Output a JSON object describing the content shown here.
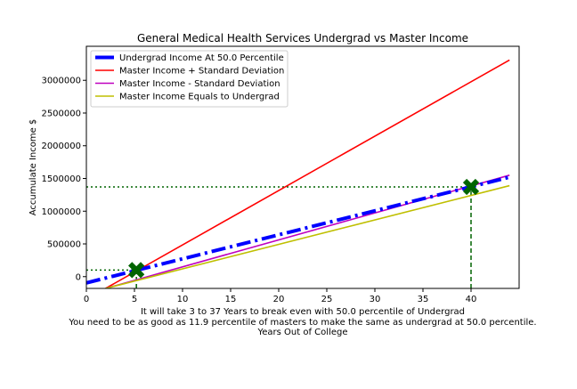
{
  "chart_data": {
    "type": "line",
    "title": "General Medical Health Services Undergrad vs Master Income",
    "xlabel_lines": [
      "It will take 3 to 37 Years to break even with 50.0 percentile of Undergrad",
      "You need to be as good as 11.9 percentile of masters to make the same as undergrad at 50.0 percentile.",
      "Years Out of College"
    ],
    "ylabel": "Accumulate Income $",
    "xlim": [
      0,
      45
    ],
    "ylim": [
      -180000,
      3520000
    ],
    "xticks": [
      0,
      5,
      10,
      15,
      20,
      25,
      30,
      35,
      40
    ],
    "yticks": [
      0,
      500000,
      1000000,
      1500000,
      2000000,
      2500000,
      3000000
    ],
    "ytick_labels": [
      "0",
      "500000",
      "1000000",
      "1500000",
      "2000000",
      "2500000",
      "3000000"
    ],
    "grid": false,
    "legend_position": "top-left",
    "series": [
      {
        "name": "Undergrad Income At 50.0 Percentile",
        "color": "#0000ff",
        "style": "dashdot",
        "width": 4,
        "x": [
          0,
          44
        ],
        "y": [
          -95000,
          1520000
        ]
      },
      {
        "name": "Master Income + Standard Deviation",
        "color": "#ff0000",
        "style": "solid",
        "width": 1.6,
        "x": [
          2,
          44
        ],
        "y": [
          -180000,
          3310000
        ]
      },
      {
        "name": "Master Income - Standard Deviation",
        "color": "#bf00bf",
        "style": "solid",
        "width": 1.6,
        "x": [
          2,
          44
        ],
        "y": [
          -180000,
          1550000
        ]
      },
      {
        "name": "Master Income Equals to Undergrad",
        "color": "#bfbf00",
        "style": "solid",
        "width": 1.6,
        "x": [
          2,
          44
        ],
        "y": [
          -180000,
          1390000
        ]
      }
    ],
    "markers": [
      {
        "x": 5.2,
        "y": 100000,
        "color": "#006400"
      },
      {
        "x": 40,
        "y": 1370000,
        "color": "#006400"
      }
    ],
    "reference_lines": [
      {
        "axis": "h",
        "y": 100000,
        "x_to": 5.2,
        "style": "dotted",
        "color": "#006400"
      },
      {
        "axis": "v",
        "x": 5.2,
        "y_to": 100000,
        "style": "dashed",
        "color": "#006400"
      },
      {
        "axis": "h",
        "y": 1370000,
        "x_to": 40,
        "style": "dotted",
        "color": "#006400"
      },
      {
        "axis": "v",
        "x": 40,
        "y_to": 1370000,
        "style": "dashed",
        "color": "#006400"
      }
    ]
  }
}
